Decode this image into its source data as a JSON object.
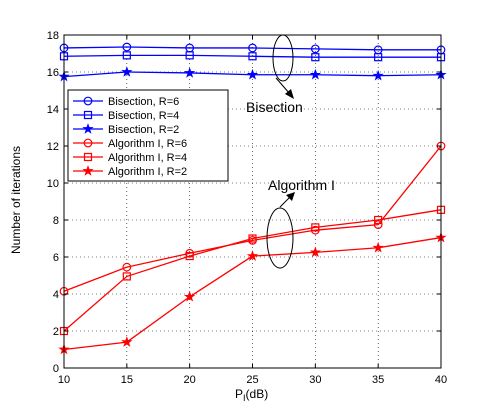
{
  "chart_data": {
    "type": "line",
    "title": "",
    "xlabel": "P",
    "xlabel_sub": "I",
    "xlabel_unit": "(dB)",
    "ylabel": "Number of iterations",
    "xlim": [
      10,
      40
    ],
    "ylim": [
      0,
      18
    ],
    "xticks": [
      10,
      15,
      20,
      25,
      30,
      35,
      40
    ],
    "yticks": [
      0,
      2,
      4,
      6,
      8,
      10,
      12,
      14,
      16,
      18
    ],
    "grid": true,
    "legend_position": "left",
    "x": [
      10,
      15,
      20,
      25,
      30,
      35,
      40
    ],
    "series": [
      {
        "name": "Bisection, R=6",
        "color": "#0000ff",
        "marker": "circle",
        "values": [
          17.3,
          17.35,
          17.3,
          17.3,
          17.25,
          17.2,
          17.2
        ]
      },
      {
        "name": "Bisection, R=4",
        "color": "#0000ff",
        "marker": "square",
        "values": [
          16.85,
          16.9,
          16.9,
          16.85,
          16.8,
          16.8,
          16.8
        ]
      },
      {
        "name": "Bisection, R=2",
        "color": "#0000ff",
        "marker": "star",
        "values": [
          15.75,
          16.0,
          15.95,
          15.85,
          15.85,
          15.8,
          15.85
        ]
      },
      {
        "name": "Algorithm I, R=6",
        "color": "#ff0000",
        "marker": "circle",
        "values": [
          4.15,
          5.45,
          6.2,
          6.9,
          7.45,
          7.75,
          12.0
        ]
      },
      {
        "name": "Algorithm I, R=4",
        "color": "#ff0000",
        "marker": "square",
        "values": [
          2.0,
          4.95,
          6.05,
          7.0,
          7.6,
          8.0,
          8.55
        ]
      },
      {
        "name": "Algorithm I, R=2",
        "color": "#ff0000",
        "marker": "star",
        "values": [
          1.0,
          1.4,
          3.85,
          6.05,
          6.25,
          6.5,
          7.05
        ]
      }
    ],
    "annotations": [
      {
        "text": "Bisection"
      },
      {
        "text": "Algorithm I"
      }
    ]
  }
}
